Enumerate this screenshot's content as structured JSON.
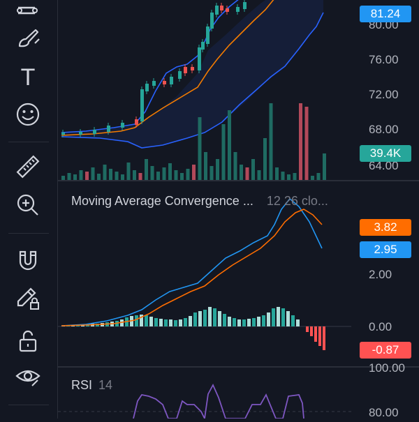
{
  "toolbar": {
    "tools": [
      {
        "name": "drawing-tool-icon"
      },
      {
        "name": "brush-icon"
      },
      {
        "name": "text-tool-icon"
      },
      {
        "name": "emoji-icon"
      },
      {
        "name": "ruler-icon"
      },
      {
        "name": "zoom-in-icon"
      },
      {
        "name": "magnet-icon"
      },
      {
        "name": "lock-drawing-icon"
      },
      {
        "name": "unlock-icon"
      },
      {
        "name": "eye-icon"
      }
    ],
    "text_tool_glyph": "T"
  },
  "price_pane": {
    "axis_labels": [
      "80.00",
      "76.00",
      "72.00",
      "68.00",
      "64.00"
    ],
    "last_price": "81.24",
    "volume": "39.4K",
    "colors": {
      "up": "#26a69a",
      "down": "#ef5350",
      "bb_band": "#2962ff",
      "ma": "#f57c00"
    }
  },
  "macd_pane": {
    "title": "Moving Average Convergence ...",
    "params": "12 26 clo...",
    "axis_labels": [
      "2.00",
      "0.00"
    ],
    "signal_value": "3.82",
    "macd_value": "2.95",
    "hist_value": "-0.87",
    "colors": {
      "macd": "#2196f3",
      "signal": "#ff6d00",
      "hist_up": "#26a69a",
      "hist_down": "#ff5252"
    }
  },
  "rsi_pane": {
    "title": "RSI",
    "period": "14",
    "axis_labels": [
      "100.00",
      "80.00"
    ],
    "color": "#7e57c2"
  }
}
